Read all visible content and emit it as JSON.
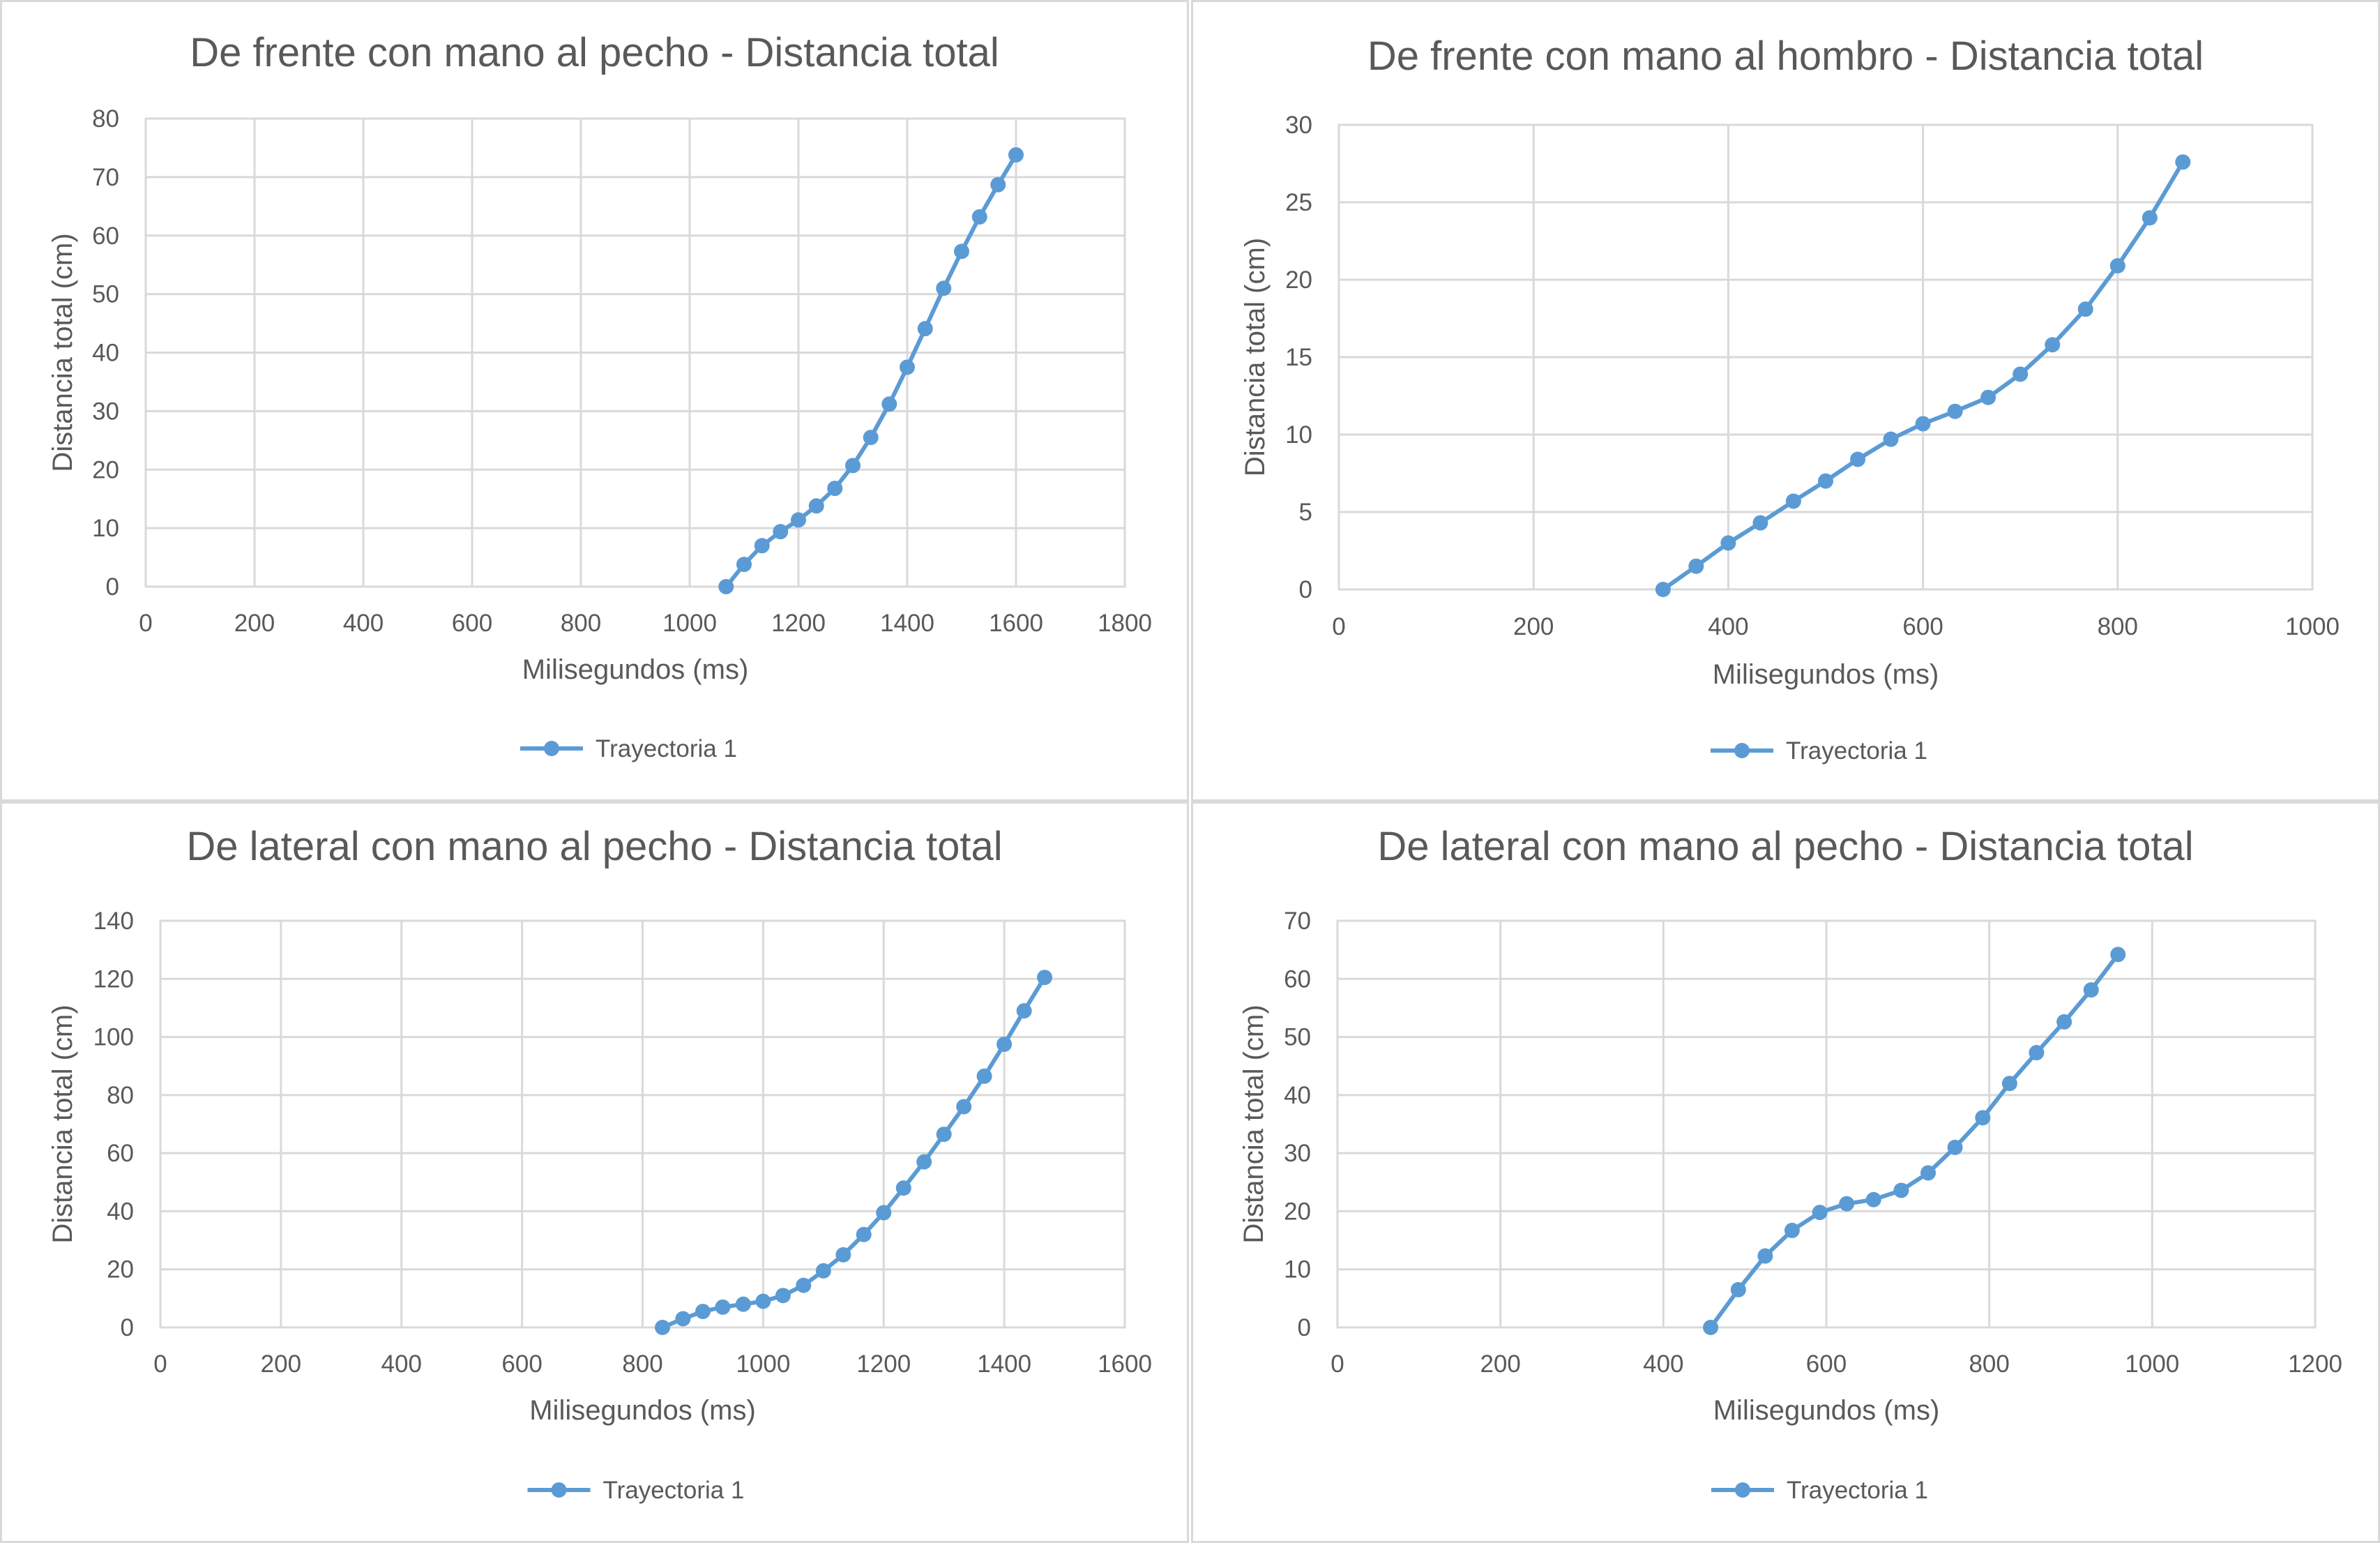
{
  "chart_data": [
    {
      "type": "line",
      "title": "De frente con mano al pecho - Distancia total",
      "xlabel": "Milisegundos (ms)",
      "ylabel": "Distancia total (cm)",
      "xlim": [
        0,
        1800
      ],
      "ylim": [
        0,
        80
      ],
      "xticks": [
        0,
        200,
        400,
        600,
        800,
        1000,
        1200,
        1400,
        1600,
        1800
      ],
      "yticks": [
        0,
        10,
        20,
        30,
        40,
        50,
        60,
        70,
        80
      ],
      "grid": true,
      "legend": "bottom",
      "color": "#5b9bd5",
      "series": [
        {
          "name": "Trayectoria 1",
          "x": [
            1067,
            1100,
            1133,
            1167,
            1200,
            1233,
            1267,
            1300,
            1333,
            1367,
            1400,
            1433,
            1467,
            1500,
            1533,
            1567,
            1600
          ],
          "y": [
            0,
            3.8,
            7.0,
            9.4,
            11.4,
            13.8,
            16.8,
            20.7,
            25.5,
            31.2,
            37.5,
            44.1,
            51.0,
            57.3,
            63.2,
            68.7,
            73.8
          ]
        }
      ]
    },
    {
      "type": "line",
      "title": "De frente con mano al hombro - Distancia total",
      "xlabel": "Milisegundos (ms)",
      "ylabel": "Distancia total (cm)",
      "xlim": [
        0,
        1000
      ],
      "ylim": [
        0,
        30
      ],
      "xticks": [
        0,
        200,
        400,
        600,
        800,
        1000
      ],
      "yticks": [
        0,
        5,
        10,
        15,
        20,
        25,
        30
      ],
      "grid": true,
      "legend": "bottom",
      "color": "#5b9bd5",
      "series": [
        {
          "name": "Trayectoria 1",
          "x": [
            333,
            367,
            400,
            433,
            467,
            500,
            533,
            567,
            600,
            633,
            667,
            700,
            733,
            767,
            800,
            833,
            867
          ],
          "y": [
            0,
            1.5,
            3.0,
            4.3,
            5.7,
            7.0,
            8.4,
            9.7,
            10.7,
            11.5,
            12.4,
            13.9,
            15.8,
            18.1,
            20.9,
            24.0,
            27.6
          ]
        }
      ]
    },
    {
      "type": "line",
      "title": "De lateral con mano al pecho - Distancia total",
      "xlabel": "Milisegundos (ms)",
      "ylabel": "Distancia total (cm)",
      "xlim": [
        0,
        1600
      ],
      "ylim": [
        0,
        140
      ],
      "xticks": [
        0,
        200,
        400,
        600,
        800,
        1000,
        1200,
        1400,
        1600
      ],
      "yticks": [
        0,
        20,
        40,
        60,
        80,
        100,
        120,
        140
      ],
      "grid": true,
      "legend": "bottom",
      "color": "#5b9bd5",
      "series": [
        {
          "name": "Trayectoria 1",
          "x": [
            833,
            867,
            900,
            933,
            967,
            1000,
            1033,
            1067,
            1100,
            1133,
            1167,
            1200,
            1233,
            1267,
            1300,
            1333,
            1367,
            1400,
            1433,
            1467
          ],
          "y": [
            0,
            3.0,
            5.5,
            7.0,
            8.0,
            9.0,
            11.0,
            14.5,
            19.5,
            25.0,
            32.0,
            39.5,
            48.0,
            57.0,
            66.5,
            76.0,
            86.5,
            97.5,
            109.0,
            120.5
          ]
        }
      ]
    },
    {
      "type": "line",
      "title": "De lateral con mano al pecho - Distancia total",
      "xlabel": "Milisegundos (ms)",
      "ylabel": "Distancia total (cm)",
      "xlim": [
        0,
        1200
      ],
      "ylim": [
        0,
        70
      ],
      "xticks": [
        0,
        200,
        400,
        600,
        800,
        1000,
        1200
      ],
      "yticks": [
        0,
        10,
        20,
        30,
        40,
        50,
        60,
        70
      ],
      "grid": true,
      "legend": "bottom",
      "color": "#5b9bd5",
      "series": [
        {
          "name": "Trayectoria 1",
          "x": [
            458,
            492,
            525,
            558,
            592,
            625,
            658,
            692,
            725,
            758,
            792,
            825,
            858,
            892,
            925,
            958
          ],
          "y": [
            0,
            6.5,
            12.3,
            16.7,
            19.8,
            21.3,
            22.0,
            23.6,
            26.6,
            31.0,
            36.1,
            42.0,
            47.3,
            52.6,
            58.1,
            64.2
          ]
        }
      ]
    }
  ]
}
